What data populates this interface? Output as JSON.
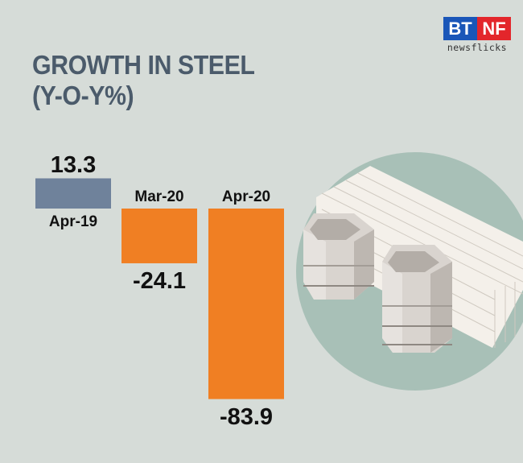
{
  "header": {
    "title_line1": "GROWTH IN STEEL",
    "title_line2": "(Y-O-Y%)"
  },
  "logo": {
    "left": "BT",
    "right": "NF",
    "sub": "newsflicks"
  },
  "chart_data": {
    "type": "bar",
    "title": "GROWTH IN STEEL (Y-O-Y%)",
    "categories": [
      "Apr-19",
      "Mar-20",
      "Apr-20"
    ],
    "values": [
      13.3,
      -24.1,
      -83.9
    ],
    "value_labels": [
      "13.3",
      "-24.1",
      "-83.9"
    ],
    "colors": [
      "#6f829b",
      "#f07f23",
      "#f07f23"
    ],
    "xlabel": "",
    "ylabel": "",
    "grid": false,
    "legend": "none"
  },
  "colors": {
    "background": "#d6dcd8",
    "title": "#4b5b6b",
    "circle": "#a8c0b7"
  }
}
